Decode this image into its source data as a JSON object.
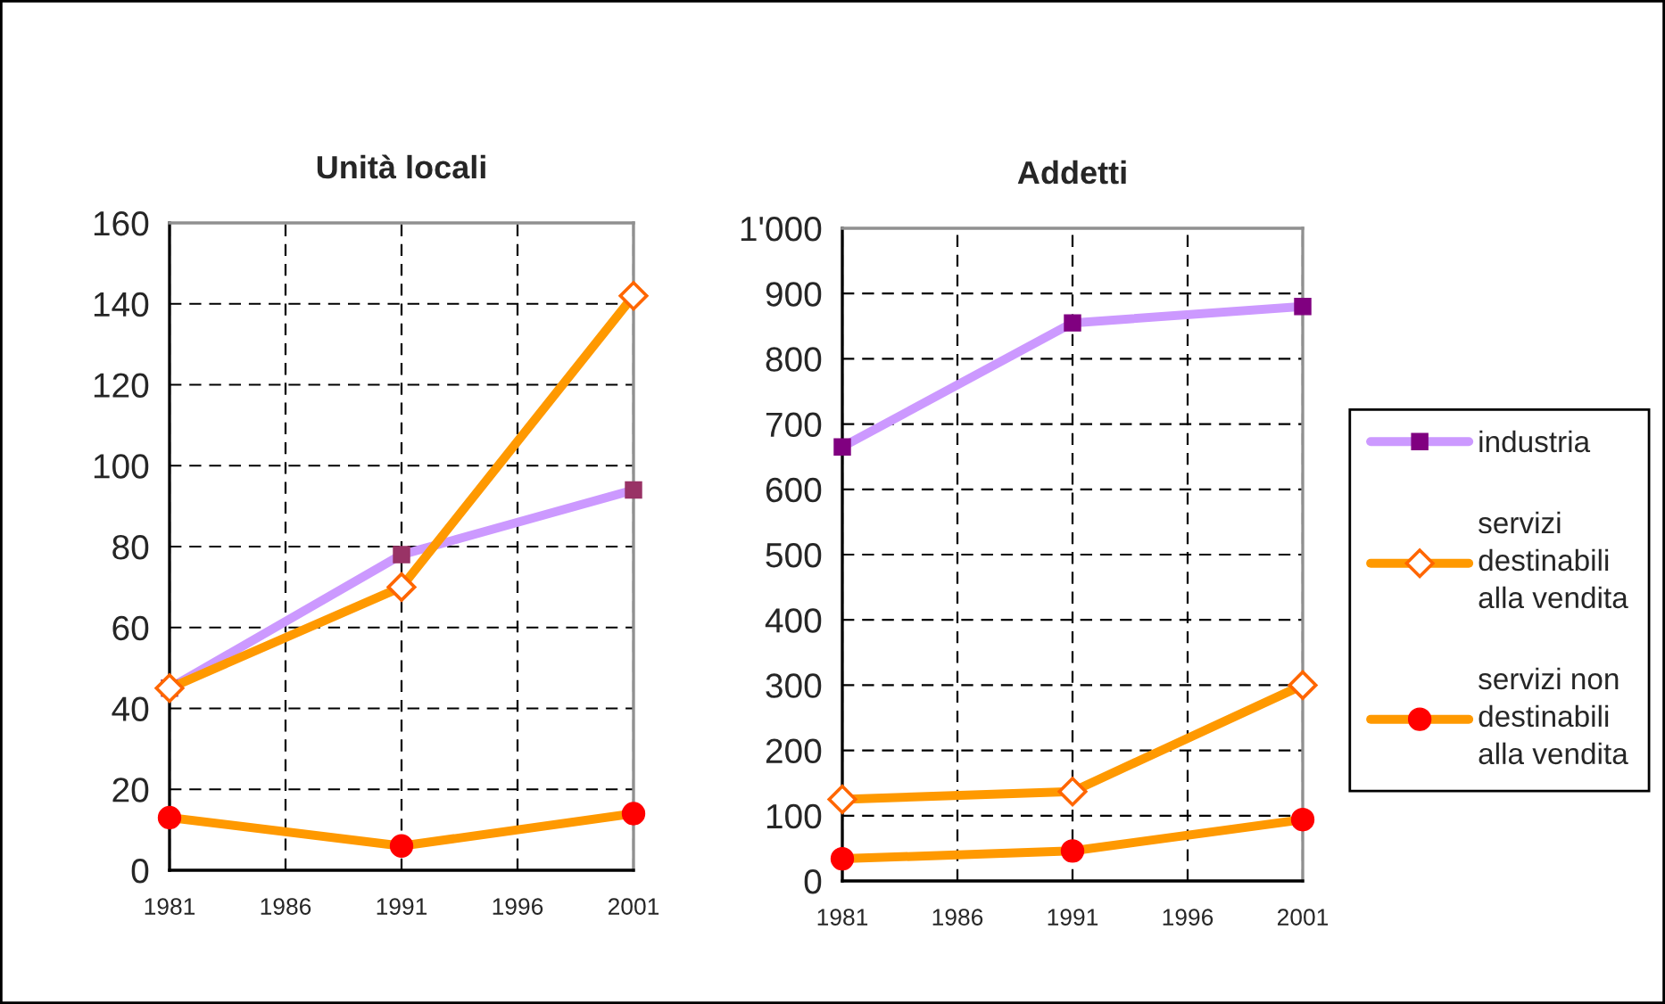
{
  "chart_data": [
    {
      "type": "line",
      "title": "Unità locali",
      "x": [
        1981,
        1991,
        2001
      ],
      "xlim": [
        1981,
        2001
      ],
      "xticks": [
        1981,
        1986,
        1991,
        1996,
        2001
      ],
      "ylim": [
        0,
        160
      ],
      "yticks": [
        0,
        20,
        40,
        60,
        80,
        100,
        120,
        140,
        160
      ],
      "grid": true,
      "series": [
        {
          "color": "#cc99ff",
          "colors": [
            "#993366",
            "#993366",
            "#993366"
          ],
          "marker": "square",
          "values": [
            45,
            78,
            94
          ]
        },
        {
          "color": "#ff9900",
          "colors": [
            "#ff6600",
            "#ff6600",
            "#ff6600"
          ],
          "marker": "diamond",
          "values": [
            45,
            70,
            142
          ]
        },
        {
          "color": "#ff9900",
          "colors": [
            "#ff0000",
            "#ff0000",
            "#ff0000"
          ],
          "marker": "circle",
          "values": [
            13,
            6,
            14
          ]
        }
      ]
    },
    {
      "type": "line",
      "title": "Addetti",
      "x": [
        1981,
        1991,
        2001
      ],
      "xlim": [
        1981,
        2001
      ],
      "xticks": [
        1981,
        1986,
        1991,
        1996,
        2001
      ],
      "ylim": [
        0,
        1000
      ],
      "yticks": [
        0,
        100,
        200,
        300,
        400,
        500,
        600,
        700,
        800,
        900,
        {
          "value": 1000,
          "label": "1'000"
        }
      ],
      "grid": true,
      "legend": "right",
      "series": [
        {
          "name": "industria",
          "color": "#cc99ff",
          "colors": [
            "#800080",
            "#800080",
            "#800080"
          ],
          "marker": "square",
          "values": [
            665,
            855,
            880
          ]
        },
        {
          "name": "servizi destinabili alla vendita",
          "color": "#ff9900",
          "colors": [
            "#ff6600",
            "#ff6600",
            "#ff6600"
          ],
          "marker": "diamond",
          "values": [
            125,
            137,
            300
          ]
        },
        {
          "name": "servizi non destinabili alla vendita",
          "color": "#ff9900",
          "colors": [
            "#ff0000",
            "#ff0000",
            "#ff0000"
          ],
          "marker": "circle",
          "values": [
            34,
            46,
            94
          ]
        }
      ]
    }
  ]
}
